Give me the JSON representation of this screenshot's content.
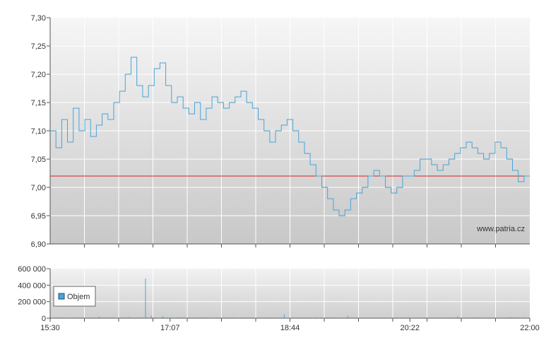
{
  "chart_data": [
    {
      "type": "line",
      "watermark": "www.patria.cz",
      "ylim": [
        6.9,
        7.3
      ],
      "y_ticks": [
        "6,90",
        "6,95",
        "7,00",
        "7,05",
        "7,10",
        "7,15",
        "7,20",
        "7,25",
        "7,30"
      ],
      "grid": true,
      "reference_line": {
        "value": 7.02,
        "color": "#d42020"
      },
      "line_color": "#4aa3d6",
      "series": [
        {
          "values": [
            7.1,
            7.07,
            7.12,
            7.08,
            7.14,
            7.1,
            7.12,
            7.09,
            7.11,
            7.13,
            7.12,
            7.15,
            7.17,
            7.2,
            7.23,
            7.18,
            7.16,
            7.18,
            7.21,
            7.22,
            7.18,
            7.15,
            7.16,
            7.14,
            7.13,
            7.15,
            7.12,
            7.14,
            7.16,
            7.15,
            7.14,
            7.15,
            7.16,
            7.17,
            7.15,
            7.14,
            7.12,
            7.1,
            7.08,
            7.1,
            7.11,
            7.12,
            7.1,
            7.08,
            7.06,
            7.04,
            7.02,
            7.0,
            6.98,
            6.96,
            6.95,
            6.96,
            6.98,
            6.99,
            7.0,
            7.02,
            7.03,
            7.02,
            7.0,
            6.99,
            7.0,
            7.02,
            7.02,
            7.03,
            7.05,
            7.05,
            7.04,
            7.03,
            7.04,
            7.05,
            7.06,
            7.07,
            7.08,
            7.07,
            7.06,
            7.05,
            7.06,
            7.08,
            7.07,
            7.05,
            7.03,
            7.01,
            7.02
          ]
        }
      ]
    },
    {
      "type": "bar",
      "ylim": [
        0,
        600000
      ],
      "y_ticks": [
        "0",
        "200 000",
        "400 000",
        "600 000"
      ],
      "x_ticks": [
        "15:30",
        "17:07",
        "18:44",
        "20:22",
        "22:00"
      ],
      "legend": "Objem",
      "legend_placement": "left",
      "bar_color": "#4aa3d6",
      "spike": {
        "value": 480000,
        "at": 0.15
      },
      "values": [
        5000,
        2000,
        0,
        3000,
        1000,
        0,
        4000,
        2000,
        20000,
        1000,
        0,
        3000,
        12000,
        15000,
        8000,
        0,
        480000,
        30000,
        0,
        25000,
        5000,
        2000,
        10000,
        5000,
        8000,
        3000,
        6000,
        4000,
        7000,
        3000,
        5000,
        9000,
        4000,
        6000,
        3000,
        4000,
        2000,
        5000,
        8000,
        3000,
        50000,
        4000,
        2000,
        6000,
        5000,
        3000,
        4000,
        2000,
        10000,
        3000,
        5000,
        30000,
        2000,
        4000,
        3000,
        5000,
        2000,
        6000,
        4000,
        3000,
        5000,
        2000,
        4000,
        3000,
        6000,
        2000,
        4000,
        3000,
        5000,
        2000,
        20000,
        3000,
        4000,
        2000,
        5000,
        3000,
        2000,
        4000,
        3000,
        15000,
        2000,
        3000,
        5000
      ]
    }
  ]
}
